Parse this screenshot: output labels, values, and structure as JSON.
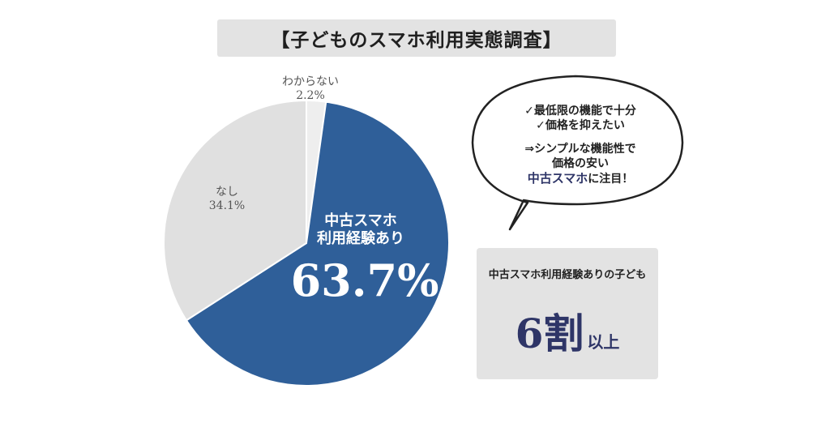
{
  "title": "【子どものスマホ利用実態調査】",
  "chart_data": {
    "type": "pie",
    "slices": [
      {
        "label": "わからない",
        "value": 2.2,
        "display": "2.2%",
        "color": "#eeeeee"
      },
      {
        "label": "中古スマホ利用経験あり",
        "label_lines": [
          "中古スマホ",
          "利用経験あり"
        ],
        "value": 63.7,
        "display": "63.7%",
        "color": "#2f5f99"
      },
      {
        "label": "なし",
        "value": 34.1,
        "display": "34.1%",
        "color": "#e0e0e0"
      }
    ],
    "start_angle_deg": 0,
    "direction": "clockwise"
  },
  "bubble": {
    "lines": [
      "✓最低限の機能で十分",
      "✓価格を抑えたい"
    ],
    "line3": "⇒シンプルな機能性で",
    "line4": "価格の安い",
    "emphasis": "中古スマホ",
    "emphasis_suffix": "に注目！"
  },
  "stat": {
    "caption": "中古スマホ利用経験ありの子ども",
    "value": "6割",
    "suffix": "以上"
  },
  "colors": {
    "accent": "#2f5f99",
    "dark_navy": "#2e3567",
    "box_gray": "#e3e3e3"
  }
}
